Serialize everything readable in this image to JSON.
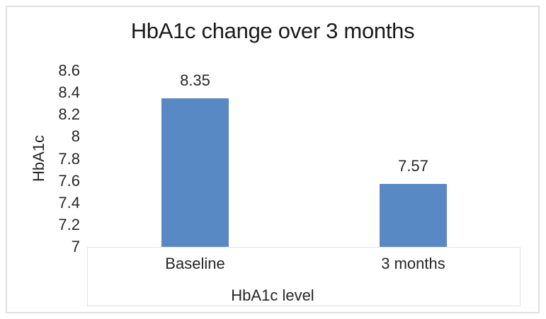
{
  "chart_data": {
    "type": "bar",
    "title": "HbA1c change over 3 months",
    "categories": [
      "Baseline",
      "3 months"
    ],
    "values": [
      8.35,
      7.57
    ],
    "data_labels": [
      "8.35",
      "7.57"
    ],
    "xlabel": "HbA1c level",
    "ylabel": "HbA1c",
    "ylim": [
      7,
      8.6
    ],
    "yticks": [
      7,
      7.2,
      7.4,
      7.6,
      7.8,
      8,
      8.2,
      8.4,
      8.6
    ],
    "grid": false,
    "legend": "none",
    "bar_color": "#5889C4"
  },
  "colors": {
    "bar": "#5889C4",
    "chart_border": "#E0E0E0",
    "label_box_border": "#E3E3E3",
    "text": "#262626",
    "background": "#FFFFFF"
  }
}
